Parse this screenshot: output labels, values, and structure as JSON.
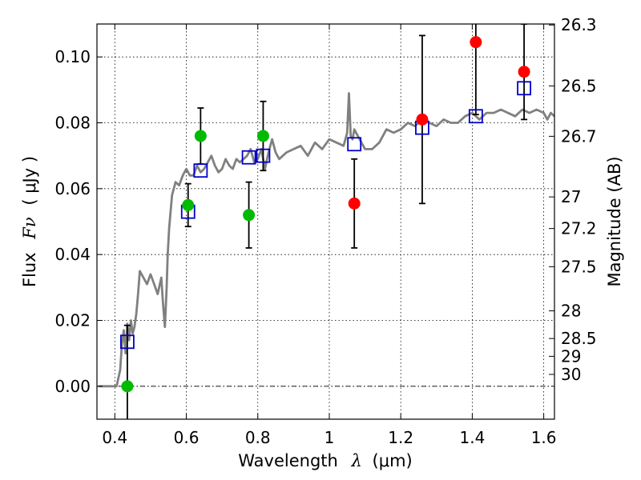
{
  "chart_data": {
    "type": "scatter",
    "xlabel": "Wavelength",
    "xlabel_symbol": "λ",
    "xlabel_unit": "(μm)",
    "ylabel": "Flux",
    "ylabel_symbol": "Fν",
    "ylabel_unit": "( μJy )",
    "y2label": "Magnitude (AB)",
    "xlim": [
      0.35,
      1.63
    ],
    "ylim": [
      -0.01,
      0.11
    ],
    "x_ticks": [
      0.4,
      0.6,
      0.8,
      1.0,
      1.2,
      1.4,
      1.6
    ],
    "x_tick_labels": [
      "0.4",
      "0.6",
      "0.8",
      "1",
      "1.2",
      "1.4",
      "1.6"
    ],
    "y_ticks": [
      0.0,
      0.02,
      0.04,
      0.06,
      0.08,
      0.1
    ],
    "y_tick_labels": [
      "0.00",
      "0.02",
      "0.04",
      "0.06",
      "0.08",
      "0.10"
    ],
    "y2_ticks": [
      {
        "label": "26.3",
        "flux": 0.1097
      },
      {
        "label": "26.5",
        "flux": 0.0912
      },
      {
        "label": "26.7",
        "flux": 0.0759
      },
      {
        "label": "27",
        "flux": 0.0575
      },
      {
        "label": "27.2",
        "flux": 0.0479
      },
      {
        "label": "27.5",
        "flux": 0.0363
      },
      {
        "label": "28",
        "flux": 0.0229
      },
      {
        "label": "28.5",
        "flux": 0.0145
      },
      {
        "label": "29",
        "flux": 0.0091
      },
      {
        "label": "30",
        "flux": 0.0036
      }
    ],
    "grid": true,
    "model_sed": {
      "color": "#808080",
      "x": [
        0.355,
        0.405,
        0.415,
        0.42,
        0.425,
        0.43,
        0.435,
        0.44,
        0.445,
        0.45,
        0.455,
        0.46,
        0.465,
        0.47,
        0.48,
        0.49,
        0.5,
        0.51,
        0.52,
        0.53,
        0.535,
        0.54,
        0.545,
        0.548,
        0.552,
        0.56,
        0.57,
        0.58,
        0.59,
        0.6,
        0.61,
        0.62,
        0.63,
        0.64,
        0.65,
        0.66,
        0.67,
        0.68,
        0.69,
        0.7,
        0.71,
        0.72,
        0.73,
        0.74,
        0.75,
        0.76,
        0.77,
        0.78,
        0.79,
        0.8,
        0.81,
        0.82,
        0.83,
        0.84,
        0.85,
        0.86,
        0.87,
        0.88,
        0.9,
        0.92,
        0.94,
        0.96,
        0.98,
        1.0,
        1.02,
        1.04,
        1.05,
        1.055,
        1.06,
        1.065,
        1.07,
        1.08,
        1.1,
        1.12,
        1.14,
        1.16,
        1.18,
        1.2,
        1.22,
        1.24,
        1.26,
        1.28,
        1.3,
        1.32,
        1.34,
        1.36,
        1.38,
        1.4,
        1.42,
        1.44,
        1.46,
        1.48,
        1.5,
        1.52,
        1.54,
        1.56,
        1.58,
        1.6,
        1.61,
        1.62,
        1.63
      ],
      "y": [
        0.0,
        0.0,
        0.005,
        0.013,
        0.017,
        0.01,
        0.019,
        0.014,
        0.02,
        0.016,
        0.018,
        0.022,
        0.028,
        0.035,
        0.033,
        0.031,
        0.034,
        0.031,
        0.028,
        0.033,
        0.025,
        0.018,
        0.03,
        0.04,
        0.048,
        0.058,
        0.062,
        0.061,
        0.064,
        0.066,
        0.064,
        0.064,
        0.067,
        0.065,
        0.066,
        0.068,
        0.07,
        0.067,
        0.065,
        0.066,
        0.069,
        0.067,
        0.066,
        0.069,
        0.068,
        0.069,
        0.07,
        0.072,
        0.068,
        0.069,
        0.072,
        0.066,
        0.071,
        0.075,
        0.071,
        0.069,
        0.07,
        0.071,
        0.072,
        0.073,
        0.07,
        0.074,
        0.072,
        0.075,
        0.074,
        0.073,
        0.077,
        0.089,
        0.076,
        0.075,
        0.078,
        0.076,
        0.072,
        0.072,
        0.074,
        0.078,
        0.077,
        0.078,
        0.08,
        0.079,
        0.081,
        0.08,
        0.079,
        0.081,
        0.08,
        0.08,
        0.082,
        0.083,
        0.081,
        0.083,
        0.083,
        0.084,
        0.083,
        0.082,
        0.084,
        0.083,
        0.084,
        0.083,
        0.081,
        0.083,
        0.082
      ]
    },
    "model_photometry": {
      "marker": "square",
      "color": "#0000cc",
      "x": [
        0.435,
        0.605,
        0.64,
        0.775,
        0.815,
        1.07,
        1.26,
        1.41,
        1.545
      ],
      "y": [
        0.0135,
        0.053,
        0.0655,
        0.0695,
        0.07,
        0.0735,
        0.0785,
        0.082,
        0.0905
      ]
    },
    "series": [
      {
        "color": "#00bb00",
        "x": [
          0.435,
          0.605,
          0.64,
          0.775,
          0.815
        ],
        "y": [
          0.0,
          0.055,
          0.076,
          0.052,
          0.076
        ],
        "yerr_low": [
          0.0,
          0.0065,
          0.0,
          0.01,
          0.0105
        ],
        "yerr_high": [
          0.0,
          0.0065,
          0.0,
          0.01,
          0.0105
        ]
      },
      {
        "color": "#ff0000",
        "x": [
          1.07,
          1.26,
          1.41,
          1.545
        ],
        "y": [
          0.0555,
          0.081,
          0.1045,
          0.0955
        ],
        "yerr_low": [
          0.0135,
          0.0255,
          0.022,
          0.0145
        ],
        "yerr_high": [
          0.0135,
          0.0255,
          0.022,
          0.0145
        ]
      }
    ],
    "extra_errorbars": [
      {
        "x": 0.435,
        "y_low": -0.012,
        "y_high": 0.0185
      },
      {
        "x": 0.64,
        "y_low": 0.0675,
        "y_high": 0.0845
      }
    ]
  }
}
